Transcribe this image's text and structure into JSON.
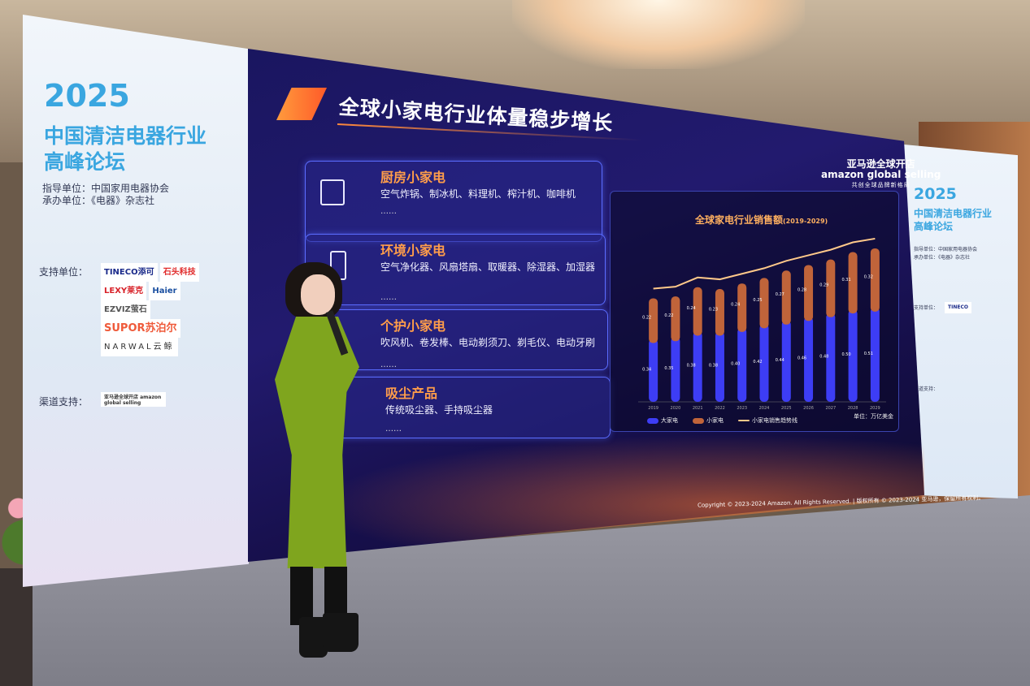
{
  "scene": "conference-stage",
  "left_banner": {
    "year": "2025",
    "title_line1": "中国清洁电器行业",
    "title_line2": "高峰论坛",
    "guide_label": "指导单位：",
    "guide_value": "中国家用电器协会",
    "host_label": "承办单位：",
    "host_value": "《电器》杂志社",
    "support_label": "支持单位：",
    "sponsors": [
      "TINECO添可",
      "石头科技",
      "LEXY莱克",
      "Haier",
      "EZVIZ萤石",
      "SUPOR苏泊尔",
      "NARWAL云鲸"
    ],
    "channel_label": "渠道支持：",
    "channel_sponsor": "亚马逊全球开店 amazon global selling"
  },
  "right_banner": {
    "year": "2025",
    "title_line1": "中国清洁电器行业",
    "title_line2": "高峰论坛",
    "guide_line": "指导单位：中国家用电器协会",
    "host_line": "承办单位：《电器》杂志社",
    "support_label": "支持单位：",
    "channel_label": "渠道支持："
  },
  "slide": {
    "title": "全球小家电行业体量稳步增长",
    "logo_cn": "亚马逊全球开店",
    "logo_en": "amazon global selling",
    "logo_tagline": "共创全球品牌新格局",
    "categories": [
      {
        "title": "厨房小家电",
        "desc": "空气炸锅、制冰机、料理机、榨汁机、咖啡机",
        "more": "……",
        "icon": "dishwasher-icon"
      },
      {
        "title": "环境小家电",
        "desc": "空气净化器、风扇塔扇、取暖器、除湿器、加湿器",
        "more": "……",
        "icon": "air-purifier-icon"
      },
      {
        "title": "个护小家电",
        "desc": "吹风机、卷发棒、电动剃须刀、剃毛仪、电动牙刷",
        "more": "……",
        "icon": "hair-dryer-icon"
      },
      {
        "title": "吸尘产品",
        "desc": "传统吸尘器、手持吸尘器",
        "more": "……",
        "icon": "vacuum-icon"
      }
    ],
    "copyright": "Copyright © 2023-2024 Amazon. All Rights Reserved. | 版权所有 © 2023-2024 亚马逊，保留所有权利。"
  },
  "chart_data": {
    "type": "bar",
    "stacked": true,
    "title": "全球家电行业销售额",
    "subtitle": "(2019-2029)",
    "unit": "单位：万亿美金",
    "categories": [
      "2019",
      "2020",
      "2021",
      "2022",
      "2023",
      "2024",
      "2025",
      "2026",
      "2027",
      "2028",
      "2029"
    ],
    "series": [
      {
        "name": "大家电",
        "color": "#3d3df5",
        "values": [
          0.34,
          0.35,
          0.38,
          0.38,
          0.4,
          0.42,
          0.44,
          0.46,
          0.48,
          0.5,
          0.51
        ]
      },
      {
        "name": "小家电",
        "color": "#c0643a",
        "values": [
          0.22,
          0.22,
          0.24,
          0.23,
          0.24,
          0.25,
          0.27,
          0.28,
          0.29,
          0.31,
          0.32
        ]
      }
    ],
    "trend_line": {
      "name": "小家电销售趋势线",
      "color": "#ffc98a"
    },
    "ylim": [
      0,
      0.9
    ],
    "grid": false,
    "legend": "bottom"
  }
}
